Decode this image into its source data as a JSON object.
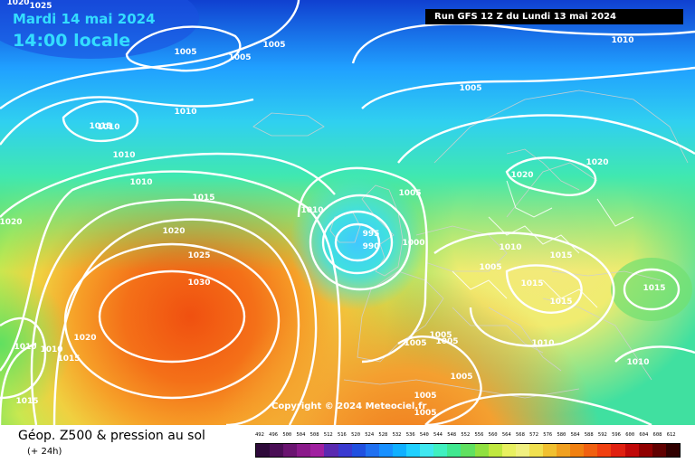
{
  "header": {
    "date": "Mardi 14 mai 2024",
    "time": "14:00 locale",
    "run_info": "Run GFS 12 Z du Lundi 13 mai 2024"
  },
  "map": {
    "copyright": "Copyright © 2024 Meteociel.fr",
    "isobar_labels": [
      "1025",
      "1020",
      "1005",
      "1005",
      "1005",
      "1010",
      "1005",
      "1010",
      "1015",
      "1010",
      "1010",
      "1015",
      "1020",
      "1025",
      "1030",
      "1010",
      "995",
      "990",
      "1000",
      "1005",
      "1010",
      "1020",
      "1020",
      "1010",
      "1005",
      "1015",
      "1015",
      "1015",
      "1015",
      "1005",
      "1005",
      "1005",
      "1010",
      "1005",
      "1005",
      "1005",
      "1010",
      "1020",
      "1010",
      "1010",
      "1015",
      "1015",
      "1020"
    ]
  },
  "footer": {
    "title": "Géop. Z500 & pression au sol",
    "subtitle": "(+ 24h)",
    "scale_labels": [
      "492",
      "496",
      "500",
      "504",
      "508",
      "512",
      "516",
      "520",
      "524",
      "528",
      "532",
      "536",
      "540",
      "544",
      "548",
      "552",
      "556",
      "560",
      "564",
      "568",
      "572",
      "576",
      "580",
      "584",
      "588",
      "592",
      "596",
      "600",
      "604",
      "608",
      "612"
    ],
    "scale_colors": [
      "#2e0a3a",
      "#4a0e55",
      "#6a1470",
      "#8a1a8a",
      "#a020a0",
      "#5a2ab0",
      "#3a3ad0",
      "#2050e0",
      "#2070f0",
      "#1890ff",
      "#10b0ff",
      "#20d0ff",
      "#40e8f0",
      "#40f0c0",
      "#40e890",
      "#60e060",
      "#90e040",
      "#c0e840",
      "#e8f060",
      "#f0f080",
      "#f0e050",
      "#f0c030",
      "#f0a020",
      "#f08010",
      "#f06010",
      "#f04010",
      "#e02010",
      "#c00808",
      "#900000",
      "#600000",
      "#300000"
    ]
  }
}
